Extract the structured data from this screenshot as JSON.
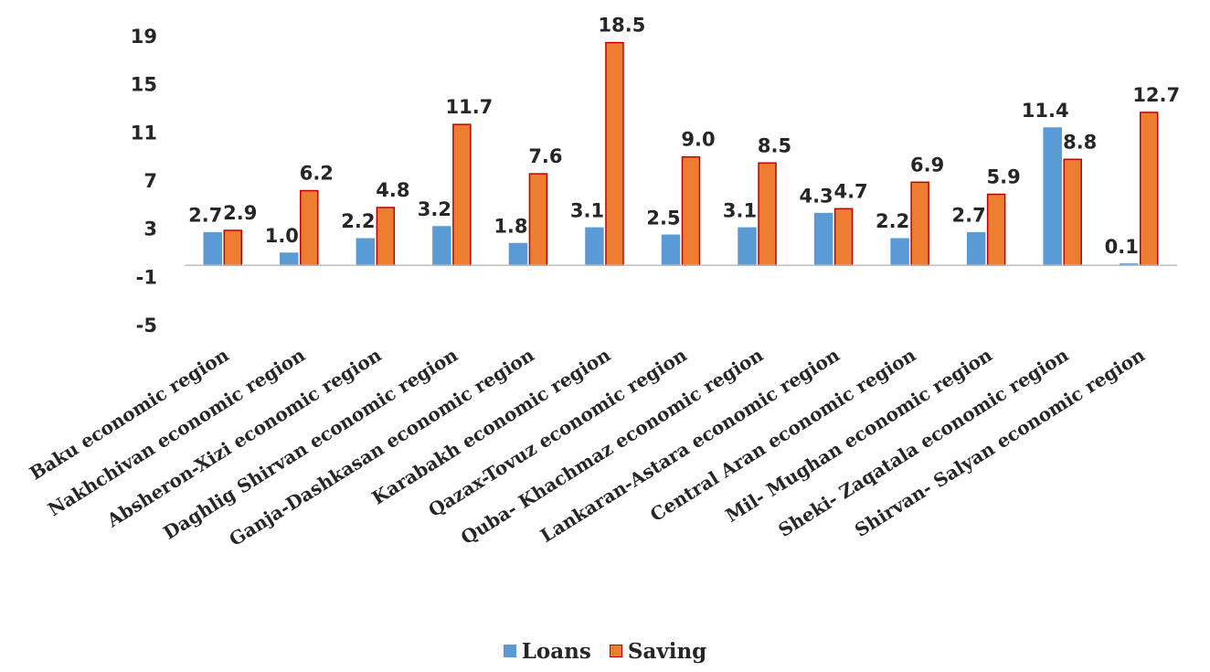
{
  "chart_data": {
    "type": "bar",
    "categories": [
      "Baku economic region",
      "Nakhchivan economic region",
      "Absheron-Xizi economic region",
      "Daghlig Shirvan economic region",
      "Ganja-Dashkasan economic region",
      "Karabakh economic region",
      "Qazax-Tovuz economic region",
      "Quba- Khachmaz economic region",
      "Lankaran-Astara economic region",
      "Central Aran economic region",
      "Mil- Mughan economic region",
      "Sheki- Zaqatala economic region",
      "Shirvan- Salyan economic region"
    ],
    "series": [
      {
        "name": "Loans",
        "values": [
          2.7,
          1.0,
          2.2,
          3.2,
          1.8,
          3.1,
          2.5,
          3.1,
          4.3,
          2.2,
          2.7,
          11.4,
          0.1
        ],
        "labels": [
          "2.7",
          "1.0",
          "2.2",
          "3.2",
          "1.8",
          "3.1",
          "2.5",
          "3.1",
          "4.3",
          "2.2",
          "2.7",
          "11.4",
          "0.1"
        ],
        "color": "#5b9bd5",
        "stroke": "#5b9bd5"
      },
      {
        "name": "Saving",
        "values": [
          2.9,
          6.2,
          4.8,
          11.7,
          7.6,
          18.5,
          9.0,
          8.5,
          4.7,
          6.9,
          5.9,
          8.8,
          12.7
        ],
        "labels": [
          "2.9",
          "6.2",
          "4.8",
          "11.7",
          "7.6",
          "18.5",
          "9.0",
          "8.5",
          "4.7",
          "6.9",
          "5.9",
          "8.8",
          "12.7"
        ],
        "color": "#ed7d31",
        "stroke": "#c00000"
      }
    ],
    "yticks": [
      19,
      15,
      11,
      7,
      3,
      -1,
      -5
    ],
    "ylim": [
      -5,
      19
    ],
    "grid": false,
    "legend_position": "bottom"
  }
}
